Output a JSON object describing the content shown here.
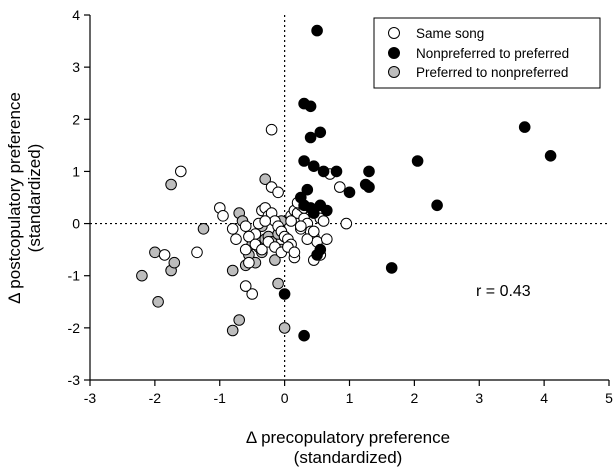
{
  "chart_data": {
    "type": "scatter",
    "xlabel": [
      "Δ precopulatory preference",
      "(standardized)"
    ],
    "ylabel": [
      "Δ postcopulatory preference",
      "(standardized)"
    ],
    "xlim": [
      -3,
      5
    ],
    "ylim": [
      -3,
      4
    ],
    "xticks": [
      "-3",
      "-2",
      "-1",
      "0",
      "1",
      "2",
      "3",
      "4",
      "5"
    ],
    "yticks": [
      "-3",
      "-2",
      "-1",
      "0",
      "1",
      "2",
      "3",
      "4"
    ],
    "reference_lines": {
      "x": 0,
      "y": 0,
      "style": "dotted"
    },
    "annotation": "r = 0.43",
    "legend_position": "top-right",
    "series": [
      {
        "name": "Same song",
        "fill": "#ffffff",
        "x": [
          -1.6,
          -1.85,
          -1.35,
          -1.0,
          -0.95,
          -0.8,
          -0.75,
          -0.6,
          -0.55,
          -0.5,
          -0.45,
          -0.4,
          -0.35,
          -0.3,
          -0.25,
          -0.2,
          -0.15,
          -0.1,
          -0.05,
          0.0,
          0.05,
          0.1,
          0.1,
          0.15,
          0.2,
          0.25,
          0.3,
          0.35,
          0.4,
          0.45,
          0.5,
          0.55,
          -0.2,
          -0.1,
          -0.6,
          -0.55,
          -0.45,
          -0.35,
          -0.25,
          -0.15,
          -0.05,
          0.05,
          0.15,
          0.25,
          0.35,
          0.45,
          0.55,
          0.6,
          0.65,
          0.3,
          0.2,
          0.1,
          -0.3,
          0.7,
          0.85,
          0.95,
          -0.2,
          0.15,
          0.25,
          -0.6,
          0.45
        ],
        "y": [
          1.0,
          -0.6,
          -0.55,
          0.3,
          0.15,
          -0.1,
          -0.3,
          -0.5,
          -0.75,
          -1.35,
          -0.2,
          0.0,
          0.25,
          0.3,
          0.15,
          0.2,
          0.05,
          -0.05,
          -0.15,
          -0.25,
          -0.3,
          -0.4,
          0.15,
          0.25,
          0.2,
          0.35,
          0.1,
          0.0,
          -0.15,
          -0.25,
          -0.35,
          -0.6,
          0.7,
          0.6,
          -0.05,
          -0.25,
          -0.4,
          -0.5,
          -0.35,
          -0.45,
          -0.55,
          -0.45,
          -0.65,
          -0.1,
          -0.3,
          -0.15,
          0.1,
          0.05,
          -0.3,
          0.3,
          0.4,
          0.05,
          0.05,
          0.95,
          0.7,
          0.0,
          1.8,
          -0.55,
          -0.05,
          -1.2,
          -0.7
        ]
      },
      {
        "name": "Nonpreferred to preferred",
        "fill": "#000000",
        "x": [
          0.5,
          0.3,
          0.4,
          0.55,
          0.4,
          0.3,
          0.45,
          0.6,
          0.8,
          0.35,
          0.25,
          0.4,
          0.55,
          0.65,
          1.0,
          1.25,
          1.3,
          1.3,
          2.05,
          2.35,
          3.7,
          4.1,
          1.65,
          0.5,
          0.55,
          0.0,
          0.3,
          0.3,
          0.45
        ],
        "y": [
          3.7,
          2.3,
          2.25,
          1.75,
          1.65,
          1.2,
          1.1,
          1.0,
          1.0,
          0.65,
          0.5,
          0.3,
          0.35,
          0.25,
          0.6,
          0.75,
          1.0,
          0.7,
          1.2,
          0.35,
          1.85,
          1.3,
          -0.85,
          -0.6,
          -0.5,
          -1.35,
          -2.15,
          0.35,
          0.2
        ]
      },
      {
        "name": "Preferred to nonpreferred",
        "fill": "#bdbdbd",
        "x": [
          -2.2,
          -2.0,
          -1.95,
          -1.75,
          -1.75,
          -1.25,
          -0.7,
          -0.65,
          -0.6,
          -0.55,
          -0.5,
          -0.45,
          -0.4,
          -0.35,
          -0.3,
          -0.25,
          -0.2,
          -0.15,
          -0.1,
          -0.05,
          0.0,
          -0.8,
          -0.7,
          -0.8,
          -0.3,
          -0.1,
          -0.05,
          -0.35,
          0.0,
          -1.7,
          -0.25
        ],
        "y": [
          -1.0,
          -0.55,
          -1.5,
          0.75,
          -0.9,
          -0.1,
          0.2,
          0.05,
          -0.8,
          -0.6,
          -0.4,
          -0.75,
          -0.45,
          -0.55,
          -0.3,
          -0.25,
          -0.35,
          -0.7,
          -0.2,
          -0.5,
          -0.25,
          -0.9,
          -1.85,
          -2.05,
          0.85,
          -1.15,
          0.05,
          -0.05,
          -2.0,
          -0.75,
          0.15
        ]
      }
    ]
  }
}
